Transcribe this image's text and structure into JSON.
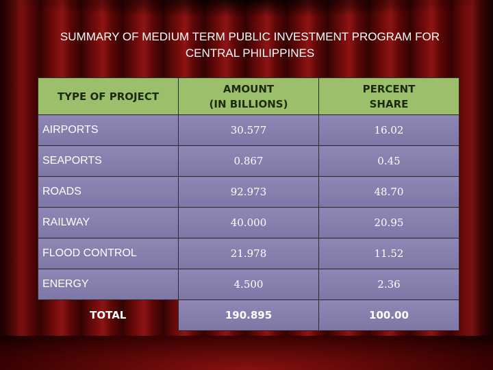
{
  "slide": {
    "title": "SUMMARY OF MEDIUM TERM PUBLIC INVESTMENT PROGRAM FOR\nCENTRAL PHILIPPINES"
  },
  "table": {
    "headers": [
      "TYPE OF PROJECT",
      "AMOUNT\n(IN BILLIONS)",
      "PERCENT\nSHARE"
    ],
    "rows": [
      {
        "type": "AIRPORTS",
        "amount": "30.577",
        "share": "16.02"
      },
      {
        "type": "SEAPORTS",
        "amount": "0.867",
        "share": "0.45"
      },
      {
        "type": "ROADS",
        "amount": "92.973",
        "share": "48.70"
      },
      {
        "type": "RAILWAY",
        "amount": "40.000",
        "share": "20.95"
      },
      {
        "type": "FLOOD CONTROL",
        "amount": "21.978",
        "share": "11.52"
      },
      {
        "type": "ENERGY",
        "amount": "4.500",
        "share": "2.36"
      }
    ],
    "total": {
      "label": "TOTAL",
      "amount": "190.895",
      "share": "100.00"
    }
  },
  "colors": {
    "header_bg": "#9bbf6a",
    "row_bg": "#8a82b0",
    "curtain": "#7a0c0c"
  }
}
